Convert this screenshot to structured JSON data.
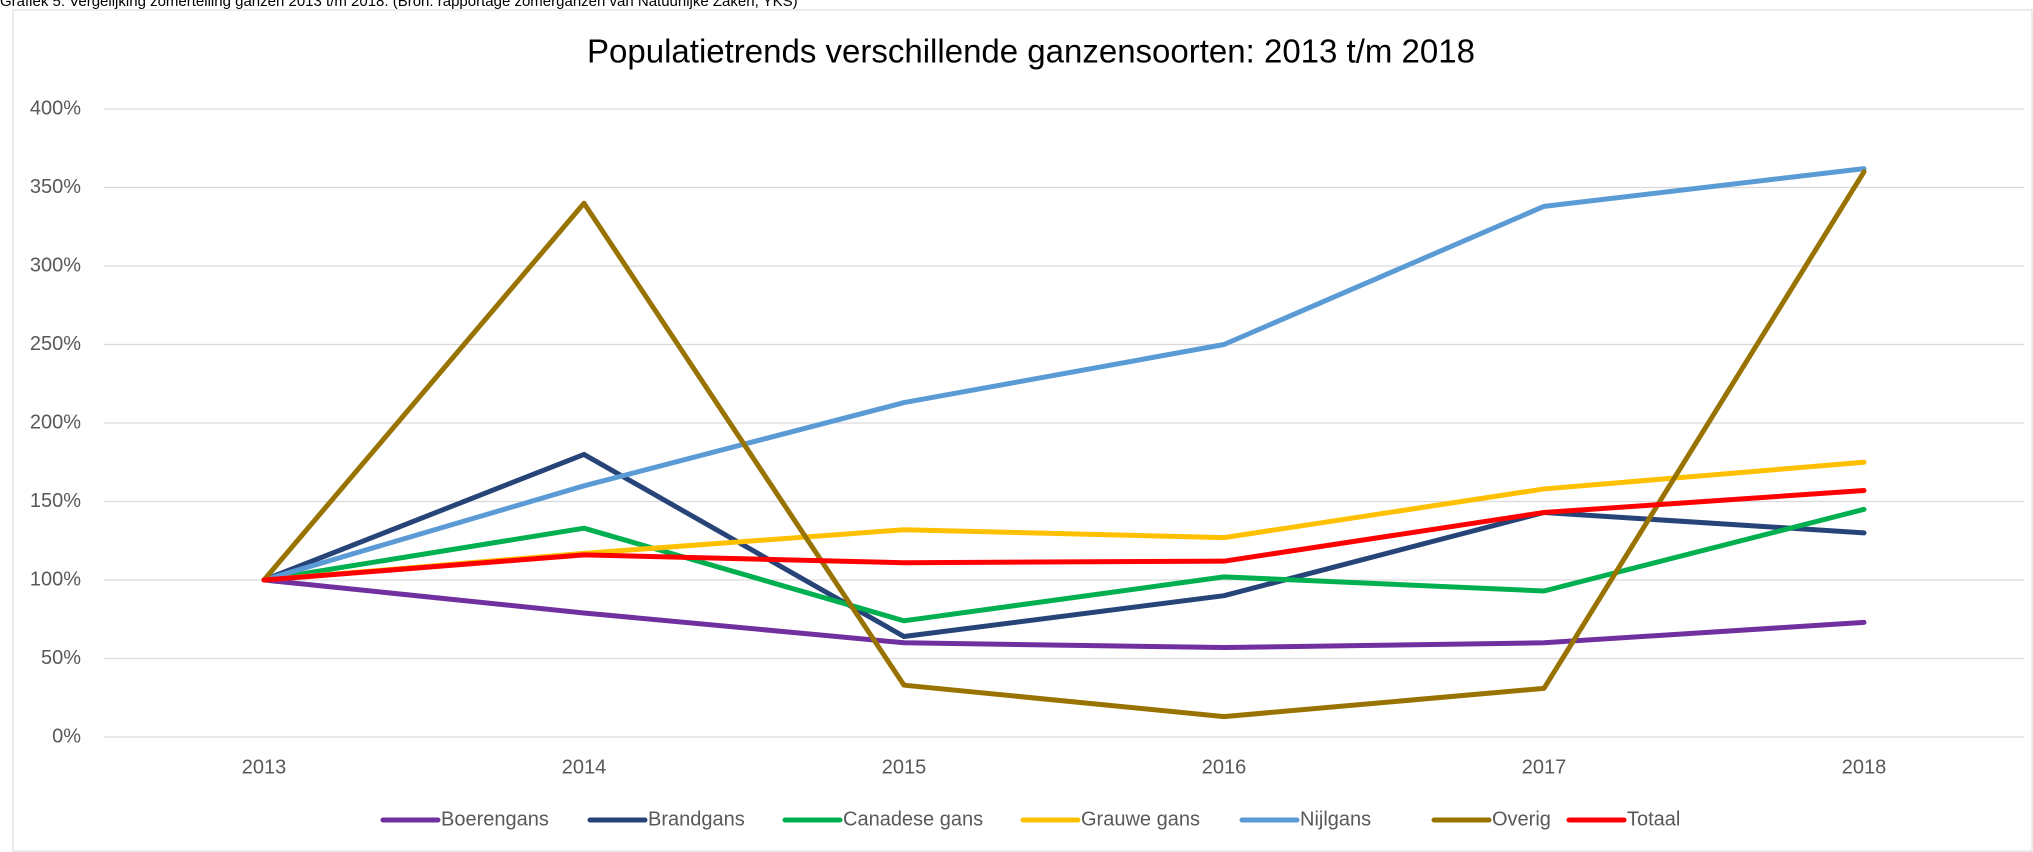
{
  "caption": "Grafiek 5: Vergelijking zomertelling ganzen 2013 t/m 2018. (Bron: rapportage zomerganzen van Natuurlijke Zaken, YKS)",
  "chart_data": {
    "type": "line",
    "title": "Populatietrends verschillende ganzensoorten: 2013 t/m 2018",
    "categories": [
      "2013",
      "2014",
      "2015",
      "2016",
      "2017",
      "2018"
    ],
    "ylim": [
      0,
      400
    ],
    "yticks": [
      {
        "value": 0,
        "label": "0%"
      },
      {
        "value": 50,
        "label": "50%"
      },
      {
        "value": 100,
        "label": "100%"
      },
      {
        "value": 150,
        "label": "150%"
      },
      {
        "value": 200,
        "label": "200%"
      },
      {
        "value": 250,
        "label": "250%"
      },
      {
        "value": 300,
        "label": "300%"
      },
      {
        "value": 350,
        "label": "350%"
      },
      {
        "value": 400,
        "label": "400%"
      }
    ],
    "grid": true,
    "legend": "bottom",
    "series": [
      {
        "name": "Boerengans",
        "color": "#7030a0",
        "values": [
          100,
          79,
          60,
          57,
          60,
          73
        ]
      },
      {
        "name": "Brandgans",
        "color": "#264478",
        "values": [
          100,
          180,
          64,
          90,
          143,
          130
        ]
      },
      {
        "name": "Canadese gans",
        "color": "#00b050",
        "values": [
          100,
          133,
          74,
          102,
          93,
          145
        ]
      },
      {
        "name": "Grauwe gans",
        "color": "#ffc000",
        "values": [
          100,
          117,
          132,
          127,
          158,
          175
        ]
      },
      {
        "name": "Nijlgans",
        "color": "#5b9bd5",
        "values": [
          100,
          160,
          213,
          250,
          338,
          362
        ]
      },
      {
        "name": "Overig",
        "color": "#997300",
        "values": [
          100,
          340,
          33,
          13,
          31,
          360
        ]
      },
      {
        "name": "Totaal",
        "color": "#ff0000",
        "values": [
          100,
          116,
          111,
          112,
          143,
          157
        ]
      }
    ]
  }
}
